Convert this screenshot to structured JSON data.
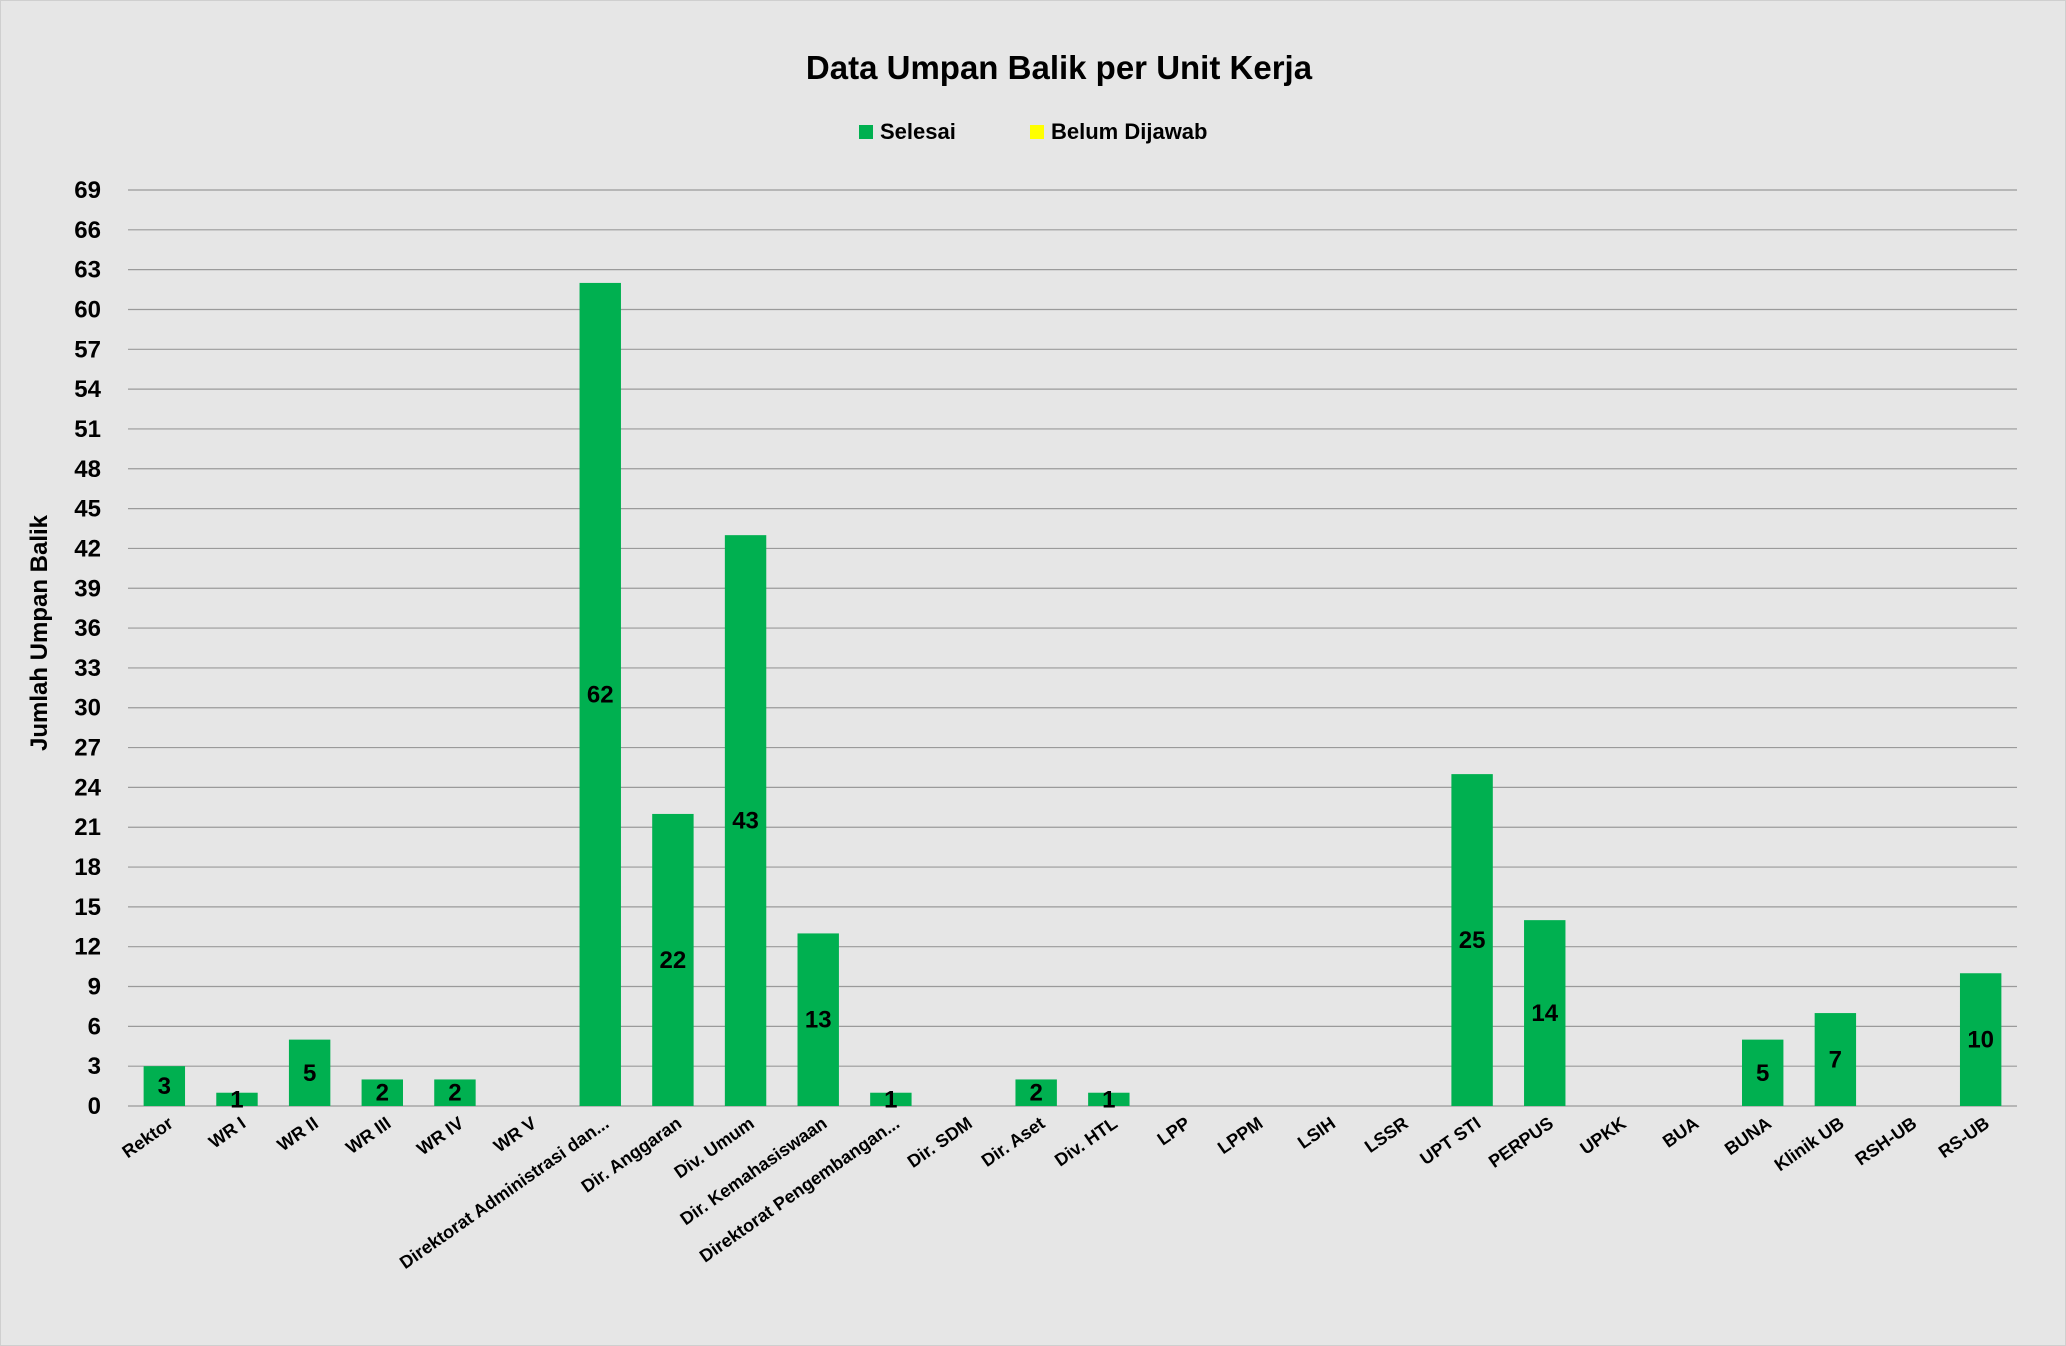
{
  "chart_data": {
    "type": "bar",
    "title": "Data Umpan Balik per Unit Kerja",
    "xlabel": "",
    "ylabel": "Jumlah Umpan Balik",
    "ylim": [
      0,
      69
    ],
    "yticks": [
      0,
      3,
      6,
      9,
      12,
      15,
      18,
      21,
      24,
      27,
      30,
      33,
      36,
      39,
      42,
      45,
      48,
      51,
      54,
      57,
      60,
      63,
      66,
      69
    ],
    "grid": true,
    "legend_position": "top-center",
    "categories": [
      "Rektor",
      "WR I",
      "WR II",
      "WR III",
      "WR IV",
      "WR V",
      "Direktorat Administrasi dan...",
      "Dir. Anggaran",
      "Div. Umum",
      "Dir. Kemahasiswaan",
      "Direktorat Pengembangan...",
      "Dir. SDM",
      "Dir. Aset",
      "Div. HTL",
      "LPP",
      "LPPM",
      "LSIH",
      "LSSR",
      "UPT STI",
      "PERPUS",
      "UPKK",
      "BUA",
      "BUNA",
      "Klinik UB",
      "RSH-UB",
      "RS-UB"
    ],
    "series": [
      {
        "name": "Selesai",
        "color": "#00b050",
        "values": [
          3,
          1,
          5,
          2,
          2,
          0,
          62,
          22,
          43,
          13,
          1,
          0,
          2,
          1,
          0,
          0,
          0,
          0,
          25,
          14,
          0,
          0,
          5,
          7,
          0,
          10
        ],
        "labels": [
          "3",
          "1",
          "5",
          "2",
          "2",
          "",
          "62",
          "22",
          "43",
          "13",
          "1",
          "",
          "2",
          "1",
          "",
          "",
          "",
          "",
          "25",
          "14",
          "",
          "",
          "5",
          "7",
          "",
          "10"
        ]
      },
      {
        "name": "Belum Dijawab",
        "color": "#ffff00",
        "values": [
          0,
          0,
          0,
          0,
          0,
          0,
          0,
          0,
          0,
          0,
          0,
          0,
          0,
          0,
          0,
          0,
          0,
          0,
          0,
          0,
          0,
          0,
          0,
          0,
          0,
          0
        ]
      }
    ]
  }
}
